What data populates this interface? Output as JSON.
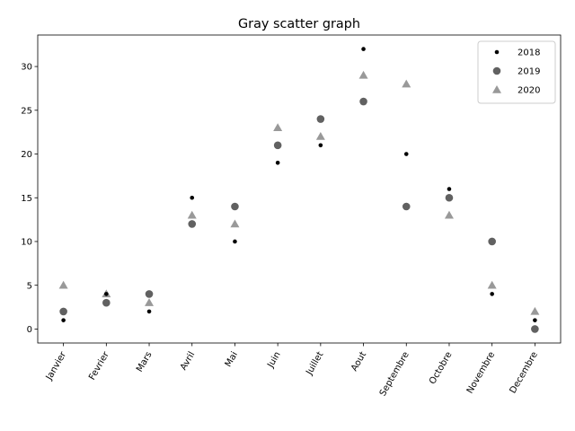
{
  "chart_data": {
    "type": "scatter",
    "title": "Gray scatter graph",
    "xlabel": "",
    "ylabel": "",
    "categories": [
      "Janvier",
      "Fevrier",
      "Mars",
      "Avril",
      "Mai",
      "Juin",
      "Juillet",
      "Aout",
      "Septembre",
      "Octobre",
      "Novembre",
      "Decembre"
    ],
    "series": [
      {
        "name": "2018",
        "marker": "dot",
        "color": "#000000",
        "values": [
          1,
          4,
          2,
          15,
          10,
          19,
          21,
          32,
          20,
          16,
          4,
          1
        ]
      },
      {
        "name": "2019",
        "marker": "circle",
        "color": "#616161",
        "values": [
          2,
          3,
          4,
          12,
          14,
          21,
          24,
          26,
          14,
          15,
          10,
          0
        ]
      },
      {
        "name": "2020",
        "marker": "triangle",
        "color": "#999999",
        "values": [
          5,
          4,
          3,
          13,
          12,
          23,
          22,
          29,
          28,
          13,
          5,
          2
        ]
      }
    ],
    "ylim": [
      -1.6,
      33.6
    ],
    "yticks": [
      0,
      5,
      10,
      15,
      20,
      25,
      30
    ],
    "grid": false,
    "legend_position": "top-right",
    "xtick_rotation": 60
  }
}
